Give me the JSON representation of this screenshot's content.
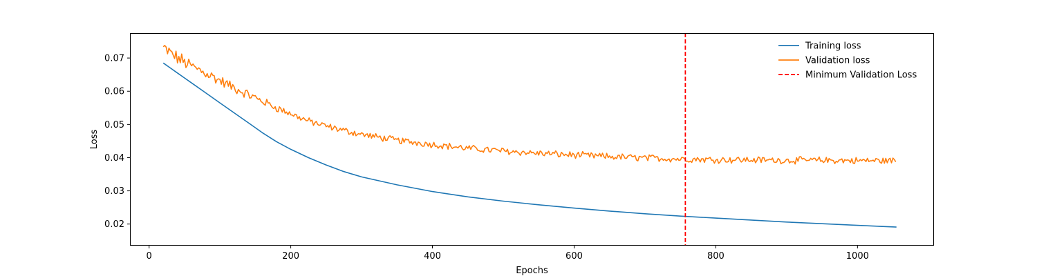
{
  "chart_data": {
    "type": "line",
    "title": "",
    "xlabel": "Epochs",
    "ylabel": "Loss",
    "xlim": [
      -27,
      1108
    ],
    "ylim": [
      0.0135,
      0.0775
    ],
    "xticks": [
      0,
      200,
      400,
      600,
      800,
      1000
    ],
    "xtick_labels": [
      "0",
      "200",
      "400",
      "600",
      "800",
      "1000"
    ],
    "yticks": [
      0.02,
      0.03,
      0.04,
      0.05,
      0.06,
      0.07
    ],
    "ytick_labels": [
      "0.02",
      "0.03",
      "0.04",
      "0.05",
      "0.06",
      "0.07"
    ],
    "grid": false,
    "legend_position": "top-right",
    "series": [
      {
        "name": "Training loss",
        "color": "#1f77b4",
        "style": "solid",
        "x": [
          20,
          30,
          40,
          50,
          60,
          80,
          100,
          120,
          140,
          160,
          180,
          200,
          225,
          250,
          275,
          300,
          350,
          400,
          450,
          500,
          550,
          600,
          650,
          700,
          750,
          800,
          850,
          900,
          950,
          1000,
          1055
        ],
        "y": [
          0.0685,
          0.067,
          0.0655,
          0.064,
          0.0625,
          0.0595,
          0.0565,
          0.0535,
          0.0505,
          0.0475,
          0.0448,
          0.0425,
          0.04,
          0.0378,
          0.0358,
          0.0342,
          0.0318,
          0.0298,
          0.0282,
          0.0269,
          0.0258,
          0.0248,
          0.0239,
          0.0231,
          0.0224,
          0.0218,
          0.0212,
          0.0206,
          0.0201,
          0.0196,
          0.0191
        ]
      },
      {
        "name": "Validation loss",
        "color": "#ff7f0e",
        "style": "solid",
        "noisy": true,
        "x": [
          20,
          30,
          40,
          50,
          60,
          80,
          100,
          120,
          140,
          160,
          180,
          200,
          225,
          250,
          275,
          300,
          350,
          400,
          450,
          500,
          550,
          600,
          650,
          700,
          750,
          800,
          850,
          900,
          950,
          1000,
          1055
        ],
        "y": [
          0.073,
          0.0715,
          0.07,
          0.0688,
          0.0675,
          0.0655,
          0.0632,
          0.061,
          0.059,
          0.057,
          0.055,
          0.0532,
          0.051,
          0.0495,
          0.0482,
          0.047,
          0.0452,
          0.044,
          0.0428,
          0.042,
          0.0413,
          0.0408,
          0.0403,
          0.0399,
          0.0396,
          0.0394,
          0.0393,
          0.0392,
          0.0392,
          0.0391,
          0.0391
        ]
      },
      {
        "name": "Minimum Validation Loss",
        "color": "#ff0000",
        "style": "dashed",
        "type": "vline",
        "x": 757
      }
    ]
  }
}
